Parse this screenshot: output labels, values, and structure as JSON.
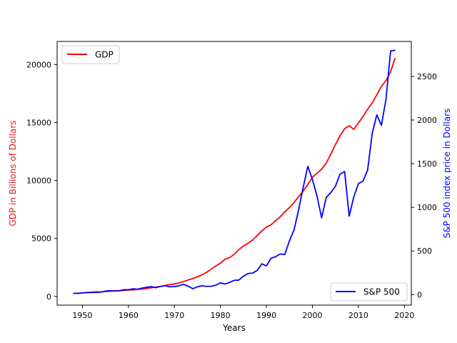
{
  "chart_data": {
    "type": "line",
    "xlabel": "Years",
    "xlim": [
      1944.5,
      2021.5
    ],
    "x_ticks": [
      1950,
      1960,
      1970,
      1980,
      1990,
      2000,
      2010,
      2020
    ],
    "axes": {
      "left": {
        "label": "GDP in Billions of Dollars",
        "color": "#e41a1a",
        "ylim": [
          -750,
          22000
        ],
        "ticks": [
          0,
          5000,
          10000,
          15000,
          20000
        ]
      },
      "right": {
        "label": "S&P 500 index price in Dollars",
        "color": "#0000ff",
        "ylim": [
          -120,
          2900
        ],
        "ticks": [
          0,
          500,
          1000,
          1500,
          2000,
          2500
        ]
      }
    },
    "series": [
      {
        "name": "GDP",
        "axis": "left",
        "color": "#ff0000",
        "legend_position": "upper-left",
        "x": [
          1948,
          1949,
          1950,
          1951,
          1952,
          1953,
          1954,
          1955,
          1956,
          1957,
          1958,
          1959,
          1960,
          1961,
          1962,
          1963,
          1964,
          1965,
          1966,
          1967,
          1968,
          1969,
          1970,
          1971,
          1972,
          1973,
          1974,
          1975,
          1976,
          1977,
          1978,
          1979,
          1980,
          1981,
          1982,
          1983,
          1984,
          1985,
          1986,
          1987,
          1988,
          1989,
          1990,
          1991,
          1992,
          1993,
          1994,
          1995,
          1996,
          1997,
          1998,
          1999,
          2000,
          2001,
          2002,
          2003,
          2004,
          2005,
          2006,
          2007,
          2008,
          2009,
          2010,
          2011,
          2012,
          2013,
          2014,
          2015,
          2016,
          2017,
          2018
        ],
        "y": [
          275,
          272,
          300,
          345,
          365,
          390,
          392,
          425,
          450,
          475,
          482,
          522,
          545,
          562,
          605,
          638,
          686,
          743,
          815,
          862,
          942,
          1020,
          1073,
          1165,
          1280,
          1425,
          1545,
          1685,
          1874,
          2082,
          2352,
          2632,
          2860,
          3210,
          3345,
          3638,
          4040,
          4347,
          4590,
          4870,
          5253,
          5658,
          5980,
          6174,
          6539,
          6879,
          7309,
          7664,
          8100,
          8609,
          9089,
          9661,
          10285,
          10622,
          10978,
          11511,
          12275,
          13094,
          13856,
          14478,
          14719,
          14419,
          14964,
          15518,
          16155,
          16692,
          17393,
          18121,
          18625,
          19390,
          20580
        ]
      },
      {
        "name": "S&P 500",
        "axis": "right",
        "color": "#0000ff",
        "legend_position": "lower-right",
        "x": [
          1948,
          1949,
          1950,
          1951,
          1952,
          1953,
          1954,
          1955,
          1956,
          1957,
          1958,
          1959,
          1960,
          1961,
          1962,
          1963,
          1964,
          1965,
          1966,
          1967,
          1968,
          1969,
          1970,
          1971,
          1972,
          1973,
          1974,
          1975,
          1976,
          1977,
          1978,
          1979,
          1980,
          1981,
          1982,
          1983,
          1984,
          1985,
          1986,
          1987,
          1988,
          1989,
          1990,
          1991,
          1992,
          1993,
          1994,
          1995,
          1996,
          1997,
          1998,
          1999,
          2000,
          2001,
          2002,
          2003,
          2004,
          2005,
          2006,
          2007,
          2008,
          2009,
          2010,
          2011,
          2012,
          2013,
          2014,
          2015,
          2016,
          2017,
          2018
        ],
        "y": [
          15,
          15,
          20,
          23,
          25,
          25,
          30,
          40,
          46,
          42,
          45,
          57,
          56,
          67,
          62,
          75,
          85,
          92,
          80,
          95,
          103,
          90,
          92,
          102,
          118,
          97,
          68,
          90,
          102,
          95,
          96,
          108,
          136,
          122,
          140,
          164,
          167,
          211,
          242,
          247,
          277,
          353,
          330,
          417,
          435,
          466,
          459,
          616,
          741,
          970,
          1229,
          1469,
          1320,
          1130,
          880,
          1112,
          1170,
          1240,
          1380,
          1410,
          900,
          1120,
          1271,
          1300,
          1426,
          1848,
          2059,
          1940,
          2239,
          2790,
          2800
        ]
      }
    ]
  }
}
